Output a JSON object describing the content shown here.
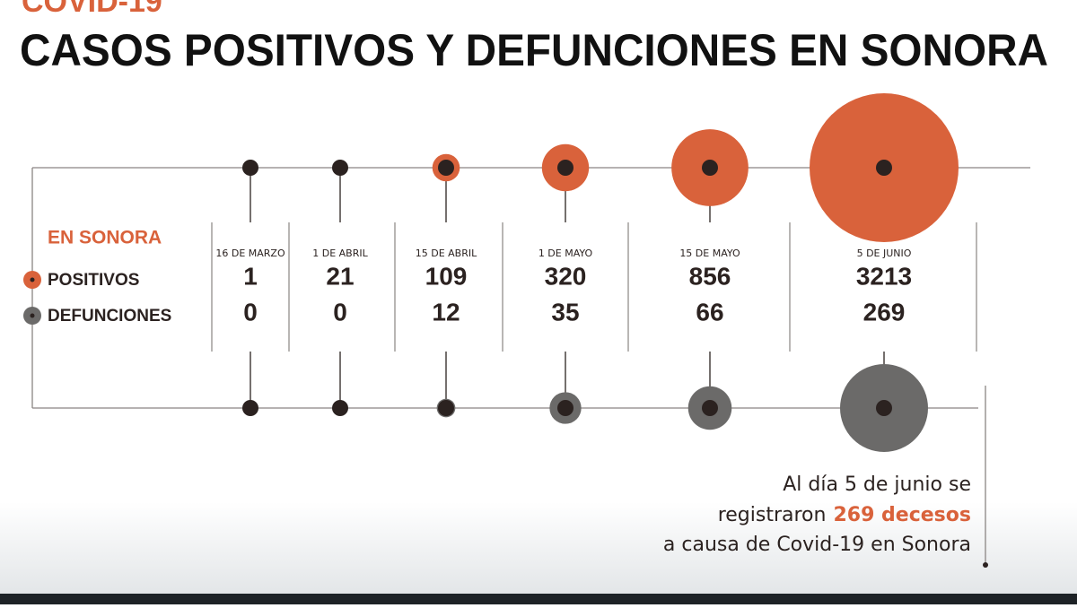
{
  "chart_data": {
    "type": "proportional-circles",
    "kicker": "COVID-19",
    "title": "CASOS POSITIVOS Y DEFUNCIONES EN SONORA",
    "legend_title": "EN SONORA",
    "categories": [
      "16 DE MARZO",
      "1 DE ABRIL",
      "15 DE ABRIL",
      "1 DE MAYO",
      "15 DE MAYO",
      "5 DE JUNIO"
    ],
    "series": [
      {
        "name": "POSITIVOS",
        "color": "#d9623b",
        "values": [
          1,
          21,
          109,
          320,
          856,
          3213
        ]
      },
      {
        "name": "DEFUNCIONES",
        "color": "#6b6a69",
        "values": [
          0,
          0,
          12,
          35,
          66,
          269
        ]
      }
    ],
    "annotation": {
      "line1": "Al día 5 de junio se",
      "line2a": "registraron",
      "line2b": "269 decesos",
      "line3": "a causa de Covid-19 en Sonora"
    }
  }
}
